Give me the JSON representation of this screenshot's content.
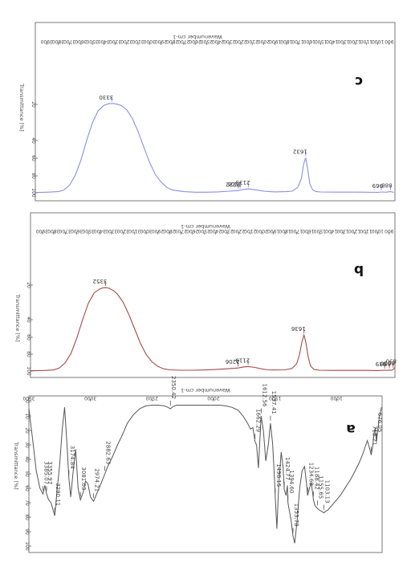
{
  "chart_data": [
    {
      "type": "line",
      "panel": "c",
      "xlabel": "Wavenumber cm-1",
      "ylabel": "Transmittance [%]",
      "xlim": [
        4000,
        850
      ],
      "x_ticks": [
        3900,
        3800,
        3700,
        3600,
        3500,
        3400,
        3300,
        3200,
        3100,
        3000,
        2900,
        2800,
        2700,
        2600,
        2500,
        2400,
        2300,
        2200,
        2100,
        2000,
        1900,
        1800,
        1700,
        1600,
        1500,
        1400,
        1300,
        1200,
        1100,
        1000,
        900
      ],
      "y_ticks": [
        "100",
        "80",
        "60",
        "40",
        "20"
      ],
      "color": "#8a8ee6",
      "peaks": [
        {
          "x": 3330,
          "label": "3330"
        },
        {
          "x": 2222,
          "label": "2222"
        },
        {
          "x": 2206,
          "label": "2206"
        },
        {
          "x": 2133,
          "label": "2133"
        },
        {
          "x": 1632,
          "label": "1632"
        },
        {
          "x": 969,
          "label": "969"
        },
        {
          "x": 888,
          "label": "888"
        }
      ],
      "series": [
        {
          "x": [
            4000,
            3900,
            3800,
            3750,
            3700,
            3650,
            3600,
            3550,
            3500,
            3450,
            3400,
            3360,
            3330,
            3300,
            3250,
            3200,
            3150,
            3100,
            3050,
            3000,
            2950,
            2900,
            2850,
            2800,
            2700,
            2600,
            2500,
            2400,
            2300,
            2220,
            2180,
            2133,
            2080,
            2000,
            1950,
            1900,
            1800,
            1750,
            1700,
            1670,
            1650,
            1632,
            1615,
            1595,
            1570,
            1540,
            1500,
            1400,
            1300,
            1200,
            1100,
            1000,
            969,
            930,
            888,
            860
          ],
          "y": [
            99.8,
            99.5,
            99,
            97.5,
            93,
            84,
            70,
            52,
            36,
            25,
            20,
            18.5,
            18.2,
            18.5,
            20,
            24,
            32,
            44,
            58,
            72,
            83,
            90,
            95,
            97.5,
            99,
            99.5,
            99.5,
            99.2,
            98.5,
            98,
            97,
            96.5,
            97.2,
            98.5,
            99,
            99.2,
            99,
            98.5,
            95,
            87,
            74,
            68,
            78,
            92,
            97.5,
            99,
            99.3,
            99.4,
            99.4,
            99.4,
            99.5,
            99.6,
            99.3,
            99.5,
            99,
            99.6
          ]
        }
      ]
    },
    {
      "type": "line",
      "panel": "b",
      "xlabel": "Wavenumber cm-1",
      "ylabel": "Transmittance [%]",
      "xlim": [
        4000,
        850
      ],
      "x_ticks": [
        3900,
        3800,
        3700,
        3600,
        3500,
        3400,
        3300,
        3200,
        3100,
        3000,
        2900,
        2800,
        2700,
        2600,
        2500,
        2400,
        2300,
        2200,
        2100,
        2000,
        1900,
        1800,
        1700,
        1600,
        1500,
        1400,
        1300,
        1200,
        1100,
        1000,
        900
      ],
      "y_ticks": [
        "100",
        "80",
        "60",
        "40",
        "20"
      ],
      "color": "#a84848",
      "peaks": [
        {
          "x": 3352,
          "label": "3352"
        },
        {
          "x": 2206,
          "label": "2206"
        },
        {
          "x": 2119,
          "label": "2119"
        },
        {
          "x": 1636,
          "label": "1636"
        },
        {
          "x": 939,
          "label": "939"
        },
        {
          "x": 898,
          "label": "898"
        },
        {
          "x": 850,
          "label": "850"
        },
        {
          "x": 865,
          "label": "865"
        }
      ],
      "series": [
        {
          "x": [
            4000,
            3900,
            3800,
            3750,
            3700,
            3650,
            3600,
            3550,
            3500,
            3450,
            3400,
            3370,
            3352,
            3320,
            3280,
            3250,
            3200,
            3150,
            3100,
            3050,
            3000,
            2950,
            2900,
            2850,
            2800,
            2700,
            2600,
            2500,
            2400,
            2300,
            2206,
            2160,
            2119,
            2060,
            2000,
            1950,
            1900,
            1800,
            1740,
            1700,
            1675,
            1655,
            1636,
            1620,
            1600,
            1580,
            1550,
            1500,
            1400,
            1300,
            1200,
            1100,
            1000,
            939,
            910,
            898,
            880,
            865,
            850
          ],
          "y": [
            99.8,
            99.5,
            99,
            97,
            92,
            83,
            68,
            50,
            34,
            24,
            20,
            19,
            18.8,
            19.5,
            22,
            25,
            33,
            45,
            59,
            73,
            84,
            91,
            95.5,
            97.8,
            98.8,
            99.2,
            99.2,
            99,
            98.5,
            97.8,
            97,
            96,
            95.6,
            96.5,
            98,
            98.8,
            99,
            98.8,
            97.5,
            93,
            84,
            72,
            65,
            72,
            86,
            95,
            98.5,
            99.2,
            99.4,
            99.4,
            99.4,
            99.4,
            99.5,
            99.2,
            99.4,
            99,
            99.4,
            98.5,
            96.5
          ]
        }
      ]
    },
    {
      "type": "line",
      "panel": "a",
      "xlabel": "Wavenumber cm-1",
      "ylabel": "Transmittance [%]",
      "xlim": [
        3500,
        630
      ],
      "x_ticks": [
        3500,
        3000,
        2500,
        2000,
        1500,
        1000,
        500
      ],
      "x_tick_labels": [
        "3500",
        "3000",
        "2500",
        "2000",
        "1500",
        "1000",
        "500"
      ],
      "y_ticks": [
        "100",
        "90",
        "80",
        "70",
        "60",
        "50",
        "40",
        "30",
        "20",
        "10",
        "0"
      ],
      "color": "#555555",
      "peaks": [
        {
          "x": 3385.07,
          "label": "3385.07"
        },
        {
          "x": 3355.97,
          "label": "3355.97"
        },
        {
          "x": 3290.11,
          "label": "3290.11"
        },
        {
          "x": 3174.84,
          "label": "3174.84"
        },
        {
          "x": 3081.03,
          "label": "3081.03"
        },
        {
          "x": 2974.21,
          "label": "2974.21"
        },
        {
          "x": 2882.63,
          "label": "2882.63"
        },
        {
          "x": 2350.42,
          "label": "2350.42"
        },
        {
          "x": 1662.29,
          "label": "1662.29"
        },
        {
          "x": 1612.56,
          "label": "1612.56"
        },
        {
          "x": 1537.41,
          "label": "1537.41"
        },
        {
          "x": 1498.15,
          "label": "1498.15"
        },
        {
          "x": 1424.77,
          "label": "1424.77"
        },
        {
          "x": 1394.6,
          "label": "1394.60"
        },
        {
          "x": 1353.78,
          "label": "1353.78"
        },
        {
          "x": 1234.6,
          "label": "1234.60"
        },
        {
          "x": 1188.42,
          "label": "1188.42"
        },
        {
          "x": 1155.65,
          "label": "1155.65"
        },
        {
          "x": 1103.13,
          "label": "1103.13"
        },
        {
          "x": 718.21,
          "label": "718.21"
        },
        {
          "x": 676.05,
          "label": "676.05"
        }
      ],
      "series": [
        {
          "x": [
            3500,
            3470,
            3440,
            3410,
            3385,
            3370,
            3356,
            3340,
            3320,
            3290,
            3270,
            3250,
            3230,
            3210,
            3190,
            3175,
            3160,
            3140,
            3120,
            3100,
            3081,
            3060,
            3040,
            3020,
            3000,
            2974,
            2950,
            2920,
            2882,
            2860,
            2820,
            2780,
            2740,
            2700,
            2650,
            2600,
            2550,
            2500,
            2450,
            2400,
            2370,
            2350,
            2330,
            2300,
            2250,
            2200,
            2150,
            2100,
            2050,
            2000,
            1950,
            1900,
            1850,
            1800,
            1760,
            1730,
            1700,
            1680,
            1662,
            1650,
            1635,
            1613,
            1595,
            1575,
            1555,
            1537,
            1520,
            1505,
            1498,
            1485,
            1470,
            1450,
            1435,
            1425,
            1410,
            1400,
            1395,
            1385,
            1370,
            1354,
            1340,
            1320,
            1300,
            1280,
            1260,
            1245,
            1235,
            1220,
            1205,
            1188,
            1175,
            1165,
            1156,
            1140,
            1120,
            1103,
            1090,
            1070,
            1050,
            1030,
            1000,
            970,
            940,
            910,
            880,
            850,
            820,
            790,
            770,
            750,
            730,
            718,
            705,
            695,
            685,
            676,
            665,
            655,
            645,
            635
          ],
          "y": [
            5,
            26,
            48,
            60,
            64,
            58,
            64,
            68,
            70,
            79,
            60,
            44,
            20,
            4,
            30,
            53,
            66,
            48,
            33,
            60,
            68,
            63,
            55,
            57,
            66,
            69,
            64,
            58,
            50,
            45,
            38,
            30,
            23,
            15,
            9,
            5,
            3,
            2.5,
            2.5,
            3,
            4,
            5,
            3.5,
            2.5,
            2.5,
            2.5,
            2.5,
            2.5,
            2.5,
            2.5,
            2.5,
            3,
            4,
            6,
            10,
            14,
            19,
            18,
            28,
            30,
            46,
            10,
            20,
            41,
            30,
            15,
            29,
            53,
            66,
            88,
            58,
            35,
            45,
            61,
            65,
            58,
            70,
            75,
            82,
            93,
            98,
            82,
            60,
            48,
            45,
            56,
            65,
            60,
            56,
            68,
            72,
            73,
            74,
            75,
            76,
            77,
            76,
            75,
            73,
            71,
            68,
            65,
            61,
            57,
            53,
            48,
            43,
            37,
            32,
            27,
            33,
            37,
            30,
            22,
            18,
            28,
            20,
            12,
            8,
            4
          ]
        }
      ]
    }
  ]
}
